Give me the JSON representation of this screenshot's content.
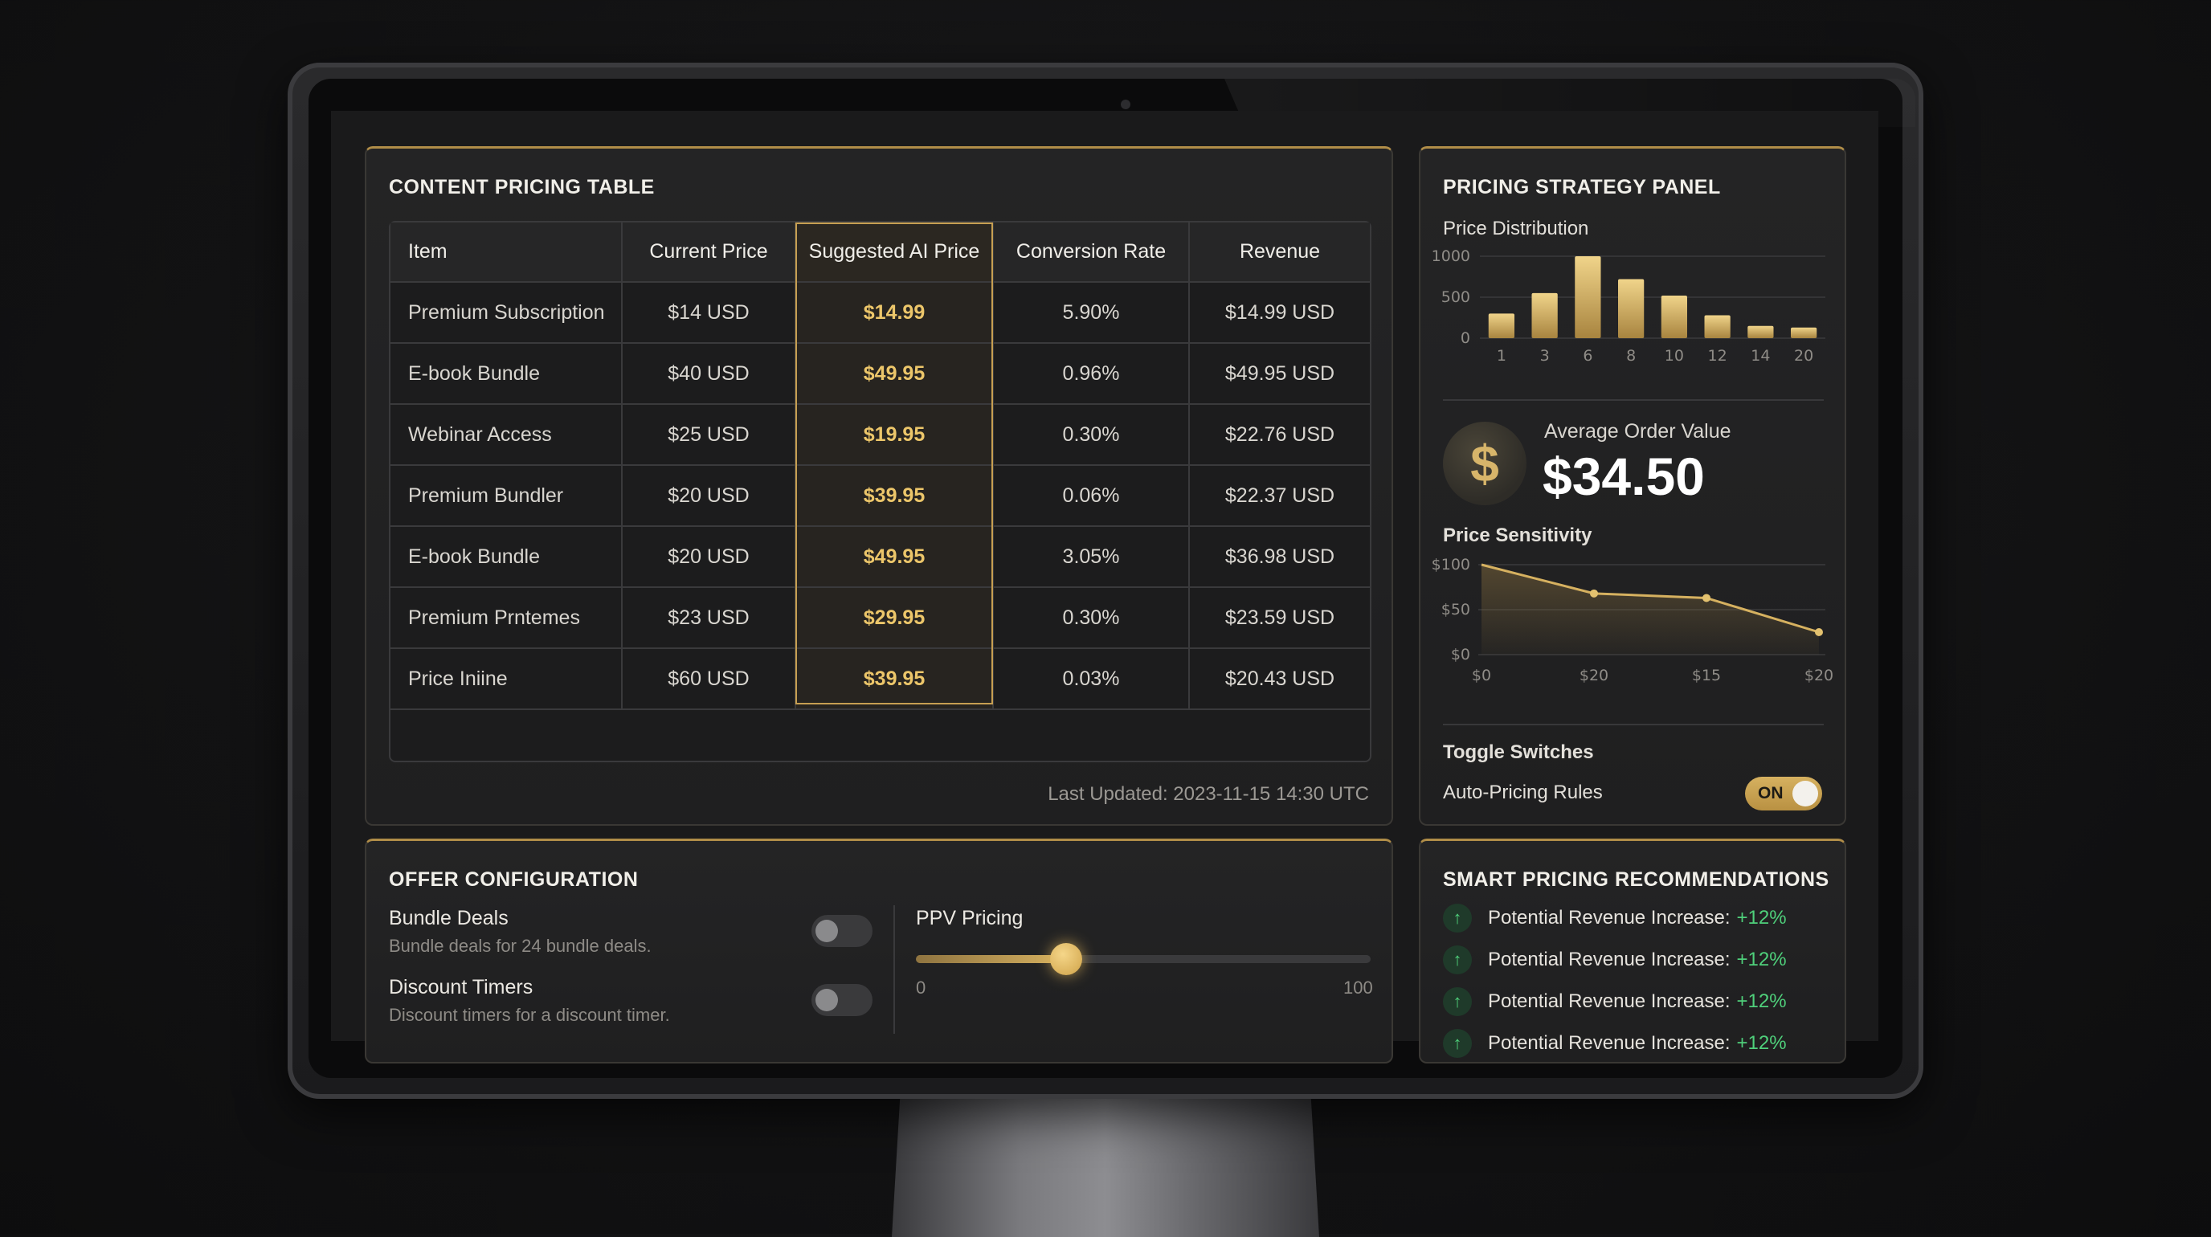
{
  "pricing_table": {
    "title": "CONTENT PRICING TABLE",
    "columns": [
      "Item",
      "Current Price",
      "Suggested AI Price",
      "Conversion Rate",
      "Revenue"
    ],
    "rows": [
      {
        "item": "Premium Subscription",
        "current": "$14 USD",
        "ai": "$14.99",
        "conv": "5.90%",
        "revenue": "$14.99 USD"
      },
      {
        "item": "E-book Bundle",
        "current": "$40 USD",
        "ai": "$49.95",
        "conv": "0.96%",
        "revenue": "$49.95 USD"
      },
      {
        "item": "Webinar Access",
        "current": "$25 USD",
        "ai": "$19.95",
        "conv": "0.30%",
        "revenue": "$22.76 USD"
      },
      {
        "item": "Premium Bundler",
        "current": "$20 USD",
        "ai": "$39.95",
        "conv": "0.06%",
        "revenue": "$22.37 USD"
      },
      {
        "item": "E-book Bundle",
        "current": "$20 USD",
        "ai": "$49.95",
        "conv": "3.05%",
        "revenue": "$36.98 USD"
      },
      {
        "item": "Premium Prntemes",
        "current": "$23 USD",
        "ai": "$29.95",
        "conv": "0.30%",
        "revenue": "$23.59 USD"
      },
      {
        "item": "Price Iniine",
        "current": "$60 USD",
        "ai": "$39.95",
        "conv": "0.03%",
        "revenue": "$20.43 USD"
      }
    ],
    "last_updated": "Last Updated: 2023-11-15 14:30 UTC"
  },
  "strategy": {
    "title": "PRICING STRATEGY PANEL",
    "distribution_label": "Price Distribution",
    "aov_icon": "$",
    "aov_label": "Average Order Value",
    "aov_value": "$34.50",
    "sensitivity_label": "Price Sensitivity",
    "toggles_label": "Toggle Switches",
    "auto_pricing_label": "Auto-Pricing Rules",
    "auto_pricing_state": "ON"
  },
  "offer": {
    "title": "OFFER CONFIGURATION",
    "bundle_title": "Bundle Deals",
    "bundle_desc": "Bundle deals for 24 bundle deals.",
    "bundle_on": false,
    "timers_title": "Discount Timers",
    "timers_desc": "Discount timers for a discount timer.",
    "timers_on": false,
    "ppv_label": "PPV Pricing",
    "ppv_min": "0",
    "ppv_max": "100",
    "ppv_value": 33
  },
  "recommendations": {
    "title": "SMART PRICING RECOMMENDATIONS",
    "items": [
      {
        "text": "Potential Revenue Increase:",
        "pct": "+12%"
      },
      {
        "text": "Potential Revenue Increase:",
        "pct": "+12%"
      },
      {
        "text": "Potential Revenue Increase:",
        "pct": "+12%"
      },
      {
        "text": "Potential Revenue Increase:",
        "pct": "+12%"
      }
    ]
  },
  "colors": {
    "accent_gold": "#d6b160",
    "positive_green": "#4fd07b"
  },
  "icons": {
    "aov": "dollar-icon",
    "recommendation": "arrow-up-icon"
  },
  "chart_data": [
    {
      "type": "bar",
      "categories": [
        "1",
        "3",
        "6",
        "8",
        "10",
        "12",
        "14",
        "20"
      ],
      "values": [
        300,
        550,
        1000,
        720,
        520,
        280,
        150,
        130
      ],
      "ylim": [
        0,
        1000
      ],
      "yticks": [
        "1000",
        "500",
        "0"
      ],
      "xticks": [
        "1",
        "3",
        "6",
        "8",
        "10",
        "12",
        "14",
        "20"
      ],
      "grid": true
    },
    {
      "type": "area",
      "x": [
        "$0",
        "$20",
        "$15",
        "$20"
      ],
      "values": [
        100,
        68,
        63,
        25
      ],
      "ylim": [
        0,
        100
      ],
      "yticks": [
        "$100",
        "$50",
        "$0"
      ],
      "xticks": [
        "$0",
        "$20",
        "$15",
        "$20"
      ],
      "grid": true
    }
  ]
}
